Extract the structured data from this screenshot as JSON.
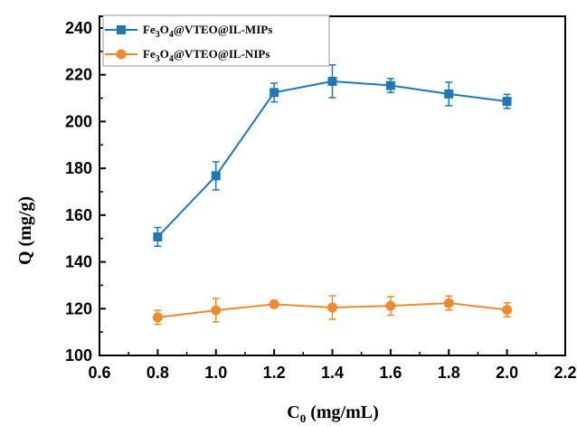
{
  "chart_data": {
    "type": "line",
    "title": "",
    "xlabel": "C",
    "xlabel_sub": "0",
    "xlabel_unit": " (mg/mL)",
    "ylabel": "Q (mg/g)",
    "xlim": [
      0.6,
      2.2
    ],
    "ylim": [
      100,
      245
    ],
    "x_ticks": [
      0.6,
      0.8,
      1.0,
      1.2,
      1.4,
      1.6,
      1.8,
      2.0,
      2.2
    ],
    "x_tick_labels": [
      "0.6",
      "0.8",
      "1.0",
      "1.2",
      "1.4",
      "1.6",
      "1.8",
      "2.0",
      "2.2"
    ],
    "y_ticks": [
      100,
      120,
      140,
      160,
      180,
      200,
      220,
      240
    ],
    "y_tick_labels": [
      "100",
      "120",
      "140",
      "160",
      "180",
      "200",
      "220",
      "240"
    ],
    "grid": false,
    "legend_position": "top-left",
    "x": [
      0.8,
      1.0,
      1.2,
      1.4,
      1.6,
      1.8,
      2.0
    ],
    "series": [
      {
        "name": "Fe3O4@VTEO@IL-MIPs",
        "legend_parts": [
          "Fe",
          "3",
          "O",
          "4",
          "@VTEO@IL-MIPs"
        ],
        "color": "#1f77b4",
        "marker": "square",
        "values": [
          150.7,
          176.8,
          212.4,
          217.2,
          215.4,
          211.8,
          208.6
        ],
        "errors": [
          4.0,
          6.0,
          4.0,
          7.0,
          3.0,
          5.0,
          3.0
        ]
      },
      {
        "name": "Fe3O4@VTEO@IL-NIPs",
        "legend_parts": [
          "Fe",
          "3",
          "O",
          "4",
          "@VTEO@IL-NIPs"
        ],
        "color": "#f08a32",
        "marker": "circle",
        "values": [
          116.3,
          119.3,
          121.9,
          120.5,
          121.2,
          122.4,
          119.5
        ],
        "errors": [
          3.0,
          5.0,
          1.5,
          5.0,
          4.0,
          3.0,
          3.0
        ]
      }
    ]
  }
}
